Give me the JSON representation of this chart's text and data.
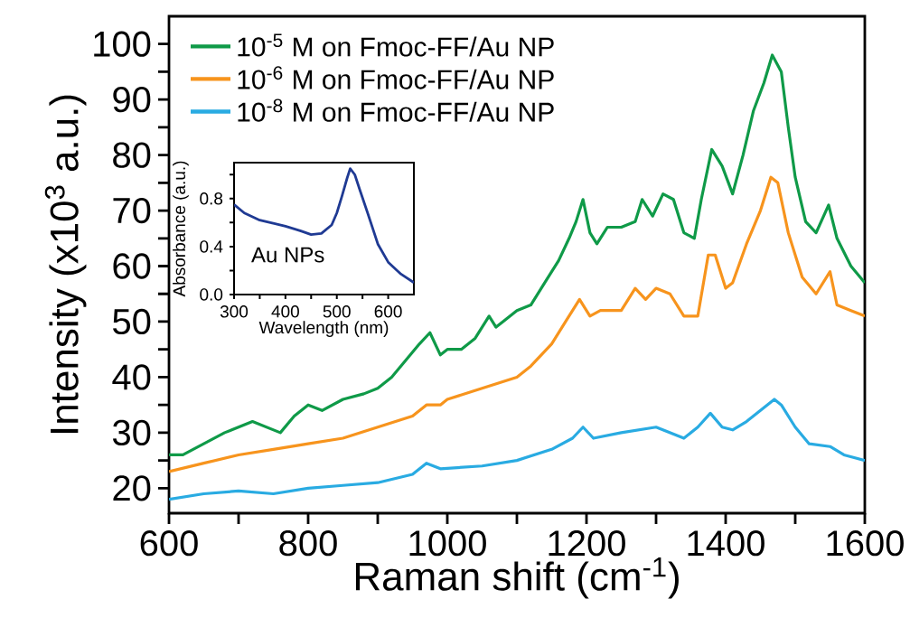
{
  "chart_data": [
    {
      "type": "line",
      "xlabel": "Raman shift (cm$^{-1}$)",
      "ylabel": "Intensity (x10$^{3}$ a.u.)",
      "xlim": [
        600,
        1600
      ],
      "ylim": [
        15.5,
        105
      ],
      "xticks": [
        600,
        {
          "value": 700,
          "label": null
        },
        800,
        {
          "value": 900,
          "label": null
        },
        1000,
        {
          "value": 1100,
          "label": null
        },
        1200,
        {
          "value": 1300,
          "label": null
        },
        1400,
        {
          "value": 1500,
          "label": null
        },
        1600
      ],
      "yticks": [
        20,
        {
          "value": 25,
          "label": null
        },
        30,
        {
          "value": 35,
          "label": null
        },
        40,
        {
          "value": 45,
          "label": null
        },
        50,
        {
          "value": 55,
          "label": null
        },
        60,
        {
          "value": 65,
          "label": null
        },
        70,
        {
          "value": 75,
          "label": null
        },
        80,
        {
          "value": 85,
          "label": null
        },
        90,
        {
          "value": 95,
          "label": null
        },
        100
      ],
      "legend": "top left",
      "series": [
        {
          "name": "10$^{-5}$ M on Fmoc-FF/Au NP",
          "color": "#0f9a48",
          "x": [
            600,
            620,
            650,
            680,
            700,
            720,
            740,
            760,
            780,
            800,
            820,
            850,
            880,
            900,
            920,
            940,
            960,
            975,
            990,
            1000,
            1020,
            1040,
            1060,
            1070,
            1080,
            1100,
            1120,
            1140,
            1160,
            1175,
            1185,
            1195,
            1205,
            1215,
            1230,
            1250,
            1270,
            1280,
            1295,
            1310,
            1325,
            1340,
            1355,
            1365,
            1380,
            1395,
            1410,
            1425,
            1440,
            1455,
            1467,
            1480,
            1490,
            1500,
            1515,
            1530,
            1548,
            1560,
            1580,
            1600
          ],
          "values": [
            26,
            26,
            28,
            30,
            31,
            32,
            31,
            30,
            33,
            35,
            34,
            36,
            37,
            38,
            40,
            43,
            46,
            48,
            44,
            45,
            45,
            47,
            51,
            49,
            50,
            52,
            53,
            57,
            61,
            65,
            68,
            72,
            66,
            64,
            67,
            67,
            68,
            72,
            69,
            73,
            72,
            66,
            65,
            72,
            81,
            78,
            73,
            80,
            88,
            93,
            98,
            95,
            85,
            76,
            68,
            66,
            71,
            65,
            60,
            57
          ]
        },
        {
          "name": "10$^{-6}$ M on Fmoc-FF/Au NP",
          "color": "#f7941d",
          "x": [
            600,
            650,
            700,
            750,
            800,
            850,
            900,
            950,
            970,
            990,
            1000,
            1050,
            1100,
            1120,
            1150,
            1170,
            1190,
            1205,
            1220,
            1250,
            1270,
            1285,
            1300,
            1320,
            1340,
            1360,
            1375,
            1385,
            1400,
            1410,
            1430,
            1450,
            1465,
            1475,
            1490,
            1510,
            1530,
            1550,
            1560,
            1580,
            1600
          ],
          "values": [
            23,
            24.5,
            26,
            27,
            28,
            29,
            31,
            33,
            35,
            35,
            36,
            38,
            40,
            42,
            46,
            50,
            54,
            51,
            52,
            52,
            56,
            54,
            56,
            55,
            51,
            51,
            62,
            62,
            56,
            57,
            64,
            70,
            76,
            75,
            66,
            58,
            55,
            59,
            53,
            52,
            51
          ]
        },
        {
          "name": "10$^{-8}$ M on Fmoc-FF/Au NP",
          "color": "#29abe2",
          "x": [
            600,
            650,
            700,
            750,
            800,
            850,
            900,
            950,
            970,
            990,
            1050,
            1100,
            1150,
            1180,
            1195,
            1210,
            1250,
            1300,
            1340,
            1360,
            1378,
            1395,
            1410,
            1430,
            1450,
            1470,
            1480,
            1500,
            1520,
            1550,
            1570,
            1600
          ],
          "values": [
            18,
            19,
            19.5,
            19,
            20,
            20.5,
            21,
            22.5,
            24.5,
            23.5,
            24,
            25,
            27,
            29,
            31,
            29,
            30,
            31,
            29,
            31,
            33.5,
            31,
            30.5,
            32,
            34,
            36,
            35,
            31,
            28,
            27.5,
            26,
            25
          ]
        }
      ]
    },
    {
      "type": "line",
      "xlabel": "Wavelength (nm)",
      "ylabel": "Absorbance (a.u.)",
      "xlim": [
        300,
        650
      ],
      "ylim": [
        0,
        1.1
      ],
      "xticks": [
        300,
        {
          "value": 350,
          "label": null
        },
        400,
        {
          "value": 450,
          "label": null
        },
        500,
        {
          "value": 550,
          "label": null
        },
        600
      ],
      "yticks": [
        {
          "value": 0,
          "label": "0.0"
        },
        {
          "value": 0.2,
          "label": null
        },
        {
          "value": 0.4,
          "label": "0.4"
        },
        {
          "value": 0.6,
          "label": null
        },
        {
          "value": 0.8,
          "label": "0.8"
        },
        {
          "value": 1.0,
          "label": null
        }
      ],
      "annotations": [
        "Au NPs"
      ],
      "series": [
        {
          "color": "#1f3a93",
          "x": [
            300,
            320,
            350,
            380,
            400,
            430,
            450,
            470,
            490,
            500,
            510,
            520,
            526,
            535,
            545,
            560,
            580,
            600,
            625,
            650
          ],
          "values": [
            0.75,
            0.68,
            0.62,
            0.59,
            0.57,
            0.53,
            0.5,
            0.51,
            0.58,
            0.68,
            0.82,
            0.97,
            1.05,
            1.0,
            0.87,
            0.68,
            0.42,
            0.27,
            0.17,
            0.1
          ]
        }
      ]
    }
  ]
}
